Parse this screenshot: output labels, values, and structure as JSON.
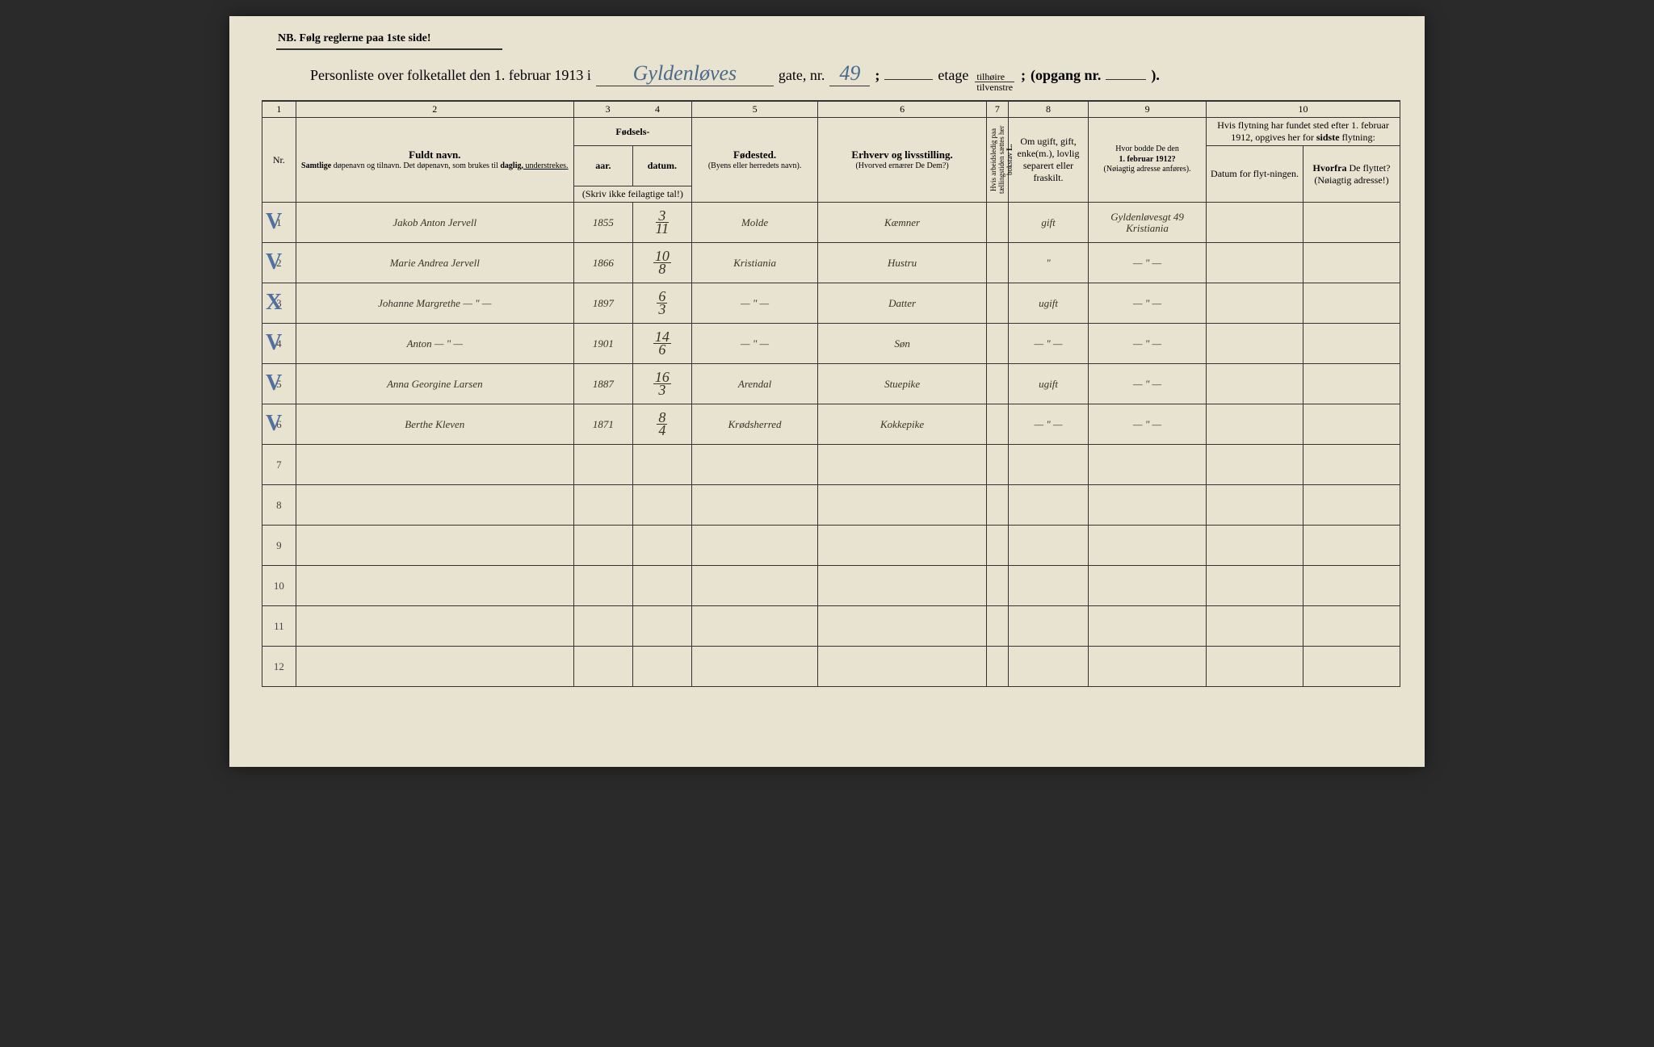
{
  "nb": "NB.  Følg reglerne paa 1ste side!",
  "title": {
    "prefix": "Personliste over folketallet den 1. februar 1913 i",
    "street": "Gyldenløves",
    "gate_label": "gate, nr.",
    "nr": "49",
    "semicolon": ";",
    "etage_label": "etage",
    "fraction_top": "tilhøire",
    "fraction_bot": "tilvenstre",
    "fraction_suffix": ";",
    "opgang_label": "(opgang nr.",
    "opgang_close": ")."
  },
  "colnums": [
    "1",
    "2",
    "3",
    "4",
    "5",
    "6",
    "7",
    "8",
    "9",
    "10"
  ],
  "headers": {
    "nr": "Nr.",
    "fuldt_navn": "Fuldt navn.",
    "fuldt_sub_a": "Samtlige",
    "fuldt_sub_b": " døpenavn og tilnavn.  Det døpenavn, som brukes til ",
    "fuldt_sub_c": "daglig,",
    "fuldt_sub_d": " understrekes.",
    "fodsels": "Fødsels-",
    "aar": "aar.",
    "datum": "datum.",
    "skriv": "(Skriv ikke feilagtige tal!)",
    "fodested": "Fødested.",
    "fodested_sub": "(Byens eller herredets navn).",
    "erhverv": "Erhverv og livsstilling.",
    "erhverv_sub": "(Hvorved ernærer De Dem?)",
    "col7": "Hvis arbeidsledig paa tællingstiden sættes her bokstav ",
    "col7_bold": "L.",
    "col8_a": "Om ugift, gift, enke(m.), lovlig separert eller fraskilt.",
    "col9_a": "Hvor bodde De den",
    "col9_b": "1. februar 1912?",
    "col9_c": "(Nøiagtig adresse anføres).",
    "col10_top": "Hvis flytning har fundet sted efter 1. februar 1912, opgives her for ",
    "col10_bold": "sidste",
    "col10_suffix": " flytning:",
    "col10_datum": "Datum for flyt-ningen.",
    "col10_hvorfra": "Hvorfra",
    "col10_hvorfra_sub": " De flyttet? (Nøiagtig adresse!)"
  },
  "rows": [
    {
      "n": "1",
      "mark": "V",
      "name": "Jakob Anton Jervell",
      "year": "1855",
      "d_top": "3",
      "d_bot": "11",
      "place": "Molde",
      "occ": "Kæmner",
      "c8": "gift",
      "c9": "Gyldenløvesgt 49 Kristiania"
    },
    {
      "n": "2",
      "mark": "V",
      "name": "Marie Andrea Jervell",
      "year": "1866",
      "d_top": "10",
      "d_bot": "8",
      "place": "Kristiania",
      "occ": "Hustru",
      "c8": "\"",
      "c9": "— \" —"
    },
    {
      "n": "3",
      "mark": "X",
      "name": "Johanne Margrethe   — \" —",
      "year": "1897",
      "d_top": "6",
      "d_bot": "3",
      "place": "— \" —",
      "occ": "Datter",
      "c8": "ugift",
      "c9": "— \" —"
    },
    {
      "n": "4",
      "mark": "V",
      "name": "Anton                — \" —",
      "year": "1901",
      "d_top": "14",
      "d_bot": "6",
      "place": "— \" —",
      "occ": "Søn",
      "c8": "— \" —",
      "c9": "— \" —"
    },
    {
      "n": "5",
      "mark": "V",
      "name": "Anna Georgine Larsen",
      "year": "1887",
      "d_top": "16",
      "d_bot": "3",
      "place": "Arendal",
      "occ": "Stuepike",
      "c8": "ugift",
      "c9": "— \" —"
    },
    {
      "n": "6",
      "mark": "V",
      "name": "Berthe Kleven",
      "year": "1871",
      "d_top": "8",
      "d_bot": "4",
      "place": "Krødsherred",
      "occ": "Kokkepike",
      "c8": "— \" —",
      "c9": "— \" —"
    }
  ],
  "empty_rows": [
    "7",
    "8",
    "9",
    "10",
    "11",
    "12"
  ],
  "colwidths": {
    "c1": "40px",
    "c2": "330px",
    "c3": "60px",
    "c4": "80px",
    "c5": "150px",
    "c6": "200px",
    "c7": "26px",
    "c8": "95px",
    "c9": "140px",
    "c10a": "70px",
    "c10b": "160px"
  }
}
